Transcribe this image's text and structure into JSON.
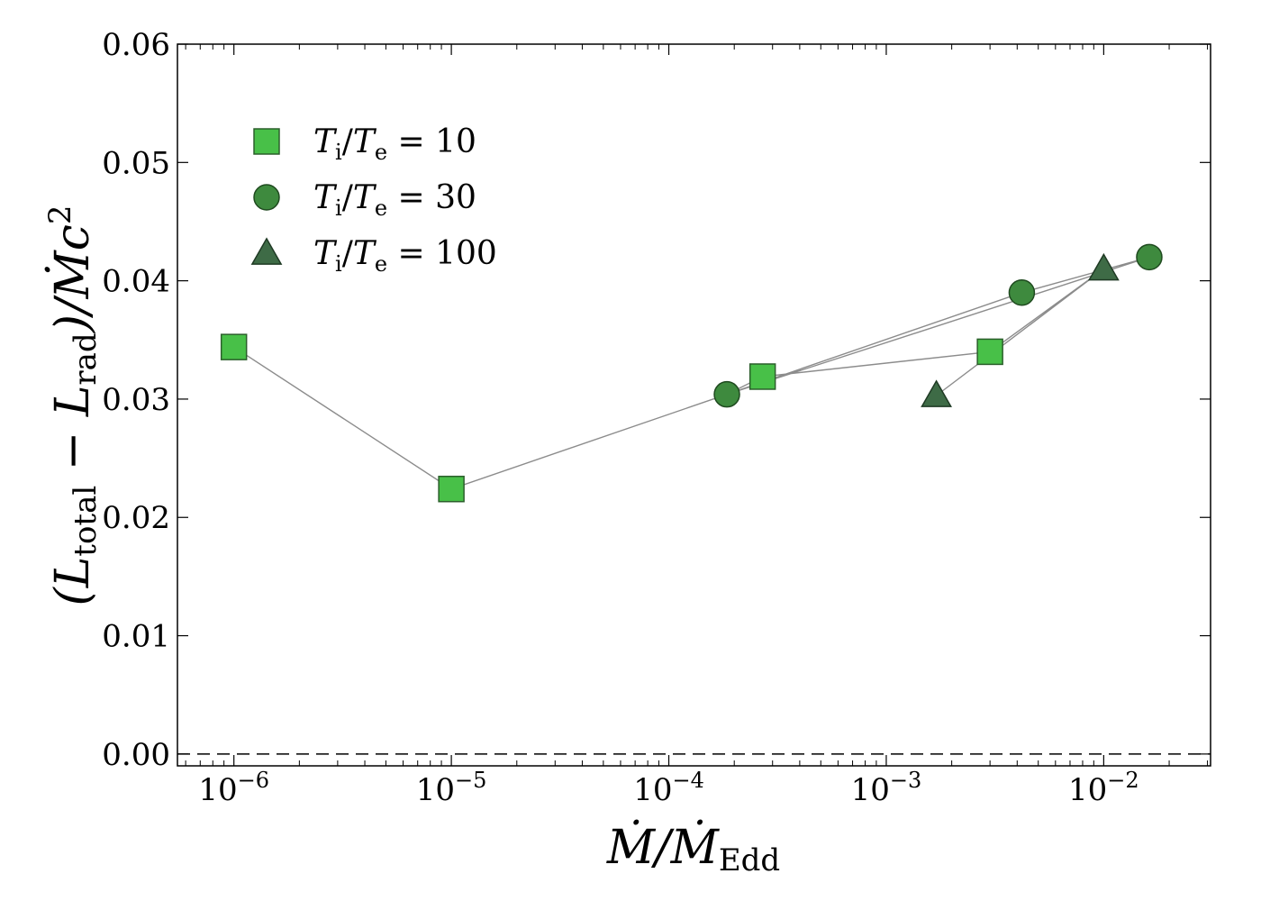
{
  "chart_data": {
    "type": "scatter",
    "title": "",
    "xscale": "log",
    "xlim": [
      5.5e-07,
      0.031
    ],
    "ylim": [
      -0.001,
      0.06
    ],
    "xlabel": {
      "main": "Ṁ/Ṁ",
      "sub": "Edd"
    },
    "ylabel": {
      "open": "(L",
      "sub1": "total",
      "mid": " − L",
      "sub2": "rad",
      "close": ")/Ṁc",
      "sup": "2"
    },
    "xticks": [
      {
        "value": 1e-06,
        "base": "10",
        "exp": "−6"
      },
      {
        "value": 1e-05,
        "base": "10",
        "exp": "−5"
      },
      {
        "value": 0.0001,
        "base": "10",
        "exp": "−4"
      },
      {
        "value": 0.001,
        "base": "10",
        "exp": "−3"
      },
      {
        "value": 0.01,
        "base": "10",
        "exp": "−2"
      }
    ],
    "yticks": [
      {
        "value": 0.0,
        "label": "0.00"
      },
      {
        "value": 0.01,
        "label": "0.01"
      },
      {
        "value": 0.02,
        "label": "0.02"
      },
      {
        "value": 0.03,
        "label": "0.03"
      },
      {
        "value": 0.04,
        "label": "0.04"
      },
      {
        "value": 0.05,
        "label": "0.05"
      },
      {
        "value": 0.06,
        "label": "0.06"
      }
    ],
    "reference_line": {
      "y": 0.0,
      "style": "dashed"
    },
    "connector_color": "#8c8c8c",
    "connector_path": [
      {
        "x": 1e-06,
        "y": 0.0344
      },
      {
        "x": 1e-05,
        "y": 0.0224
      },
      {
        "x": 0.000185,
        "y": 0.0304
      },
      {
        "x": 0.0162,
        "y": 0.042
      },
      {
        "x": 0.0042,
        "y": 0.039
      },
      {
        "x": 0.000185,
        "y": 0.0304
      },
      {
        "x": 0.00027,
        "y": 0.0319
      },
      {
        "x": 0.003,
        "y": 0.034
      },
      {
        "x": 0.01,
        "y": 0.041
      },
      {
        "x": 0.0017,
        "y": 0.0303
      }
    ],
    "legend_position": "upper-left",
    "series": [
      {
        "name": "T_i/T_e = 10",
        "legend": {
          "T1": "T",
          "s1": "i",
          "slash": "/",
          "T2": "T",
          "s2": "e",
          "eq": " = ",
          "val": "10"
        },
        "marker": "square",
        "color": "#48c048",
        "edge": "#2b5f2b",
        "points": [
          {
            "x": 1e-06,
            "y": 0.0344
          },
          {
            "x": 1e-05,
            "y": 0.0224
          },
          {
            "x": 0.00027,
            "y": 0.0319
          },
          {
            "x": 0.003,
            "y": 0.034
          }
        ]
      },
      {
        "name": "T_i/T_e = 30",
        "legend": {
          "T1": "T",
          "s1": "i",
          "slash": "/",
          "T2": "T",
          "s2": "e",
          "eq": " = ",
          "val": "30"
        },
        "marker": "circle",
        "color": "#3e8a3e",
        "edge": "#1f4a1f",
        "points": [
          {
            "x": 0.000185,
            "y": 0.0304
          },
          {
            "x": 0.0042,
            "y": 0.039
          },
          {
            "x": 0.0162,
            "y": 0.042
          }
        ]
      },
      {
        "name": "T_i/T_e = 100",
        "legend": {
          "T1": "T",
          "s1": "i",
          "slash": "/",
          "T2": "T",
          "s2": "e",
          "eq": " = ",
          "val": "100"
        },
        "marker": "triangle",
        "color": "#3e6b46",
        "edge": "#1f3a24",
        "points": [
          {
            "x": 0.0017,
            "y": 0.0303
          },
          {
            "x": 0.01,
            "y": 0.041
          }
        ]
      }
    ]
  }
}
